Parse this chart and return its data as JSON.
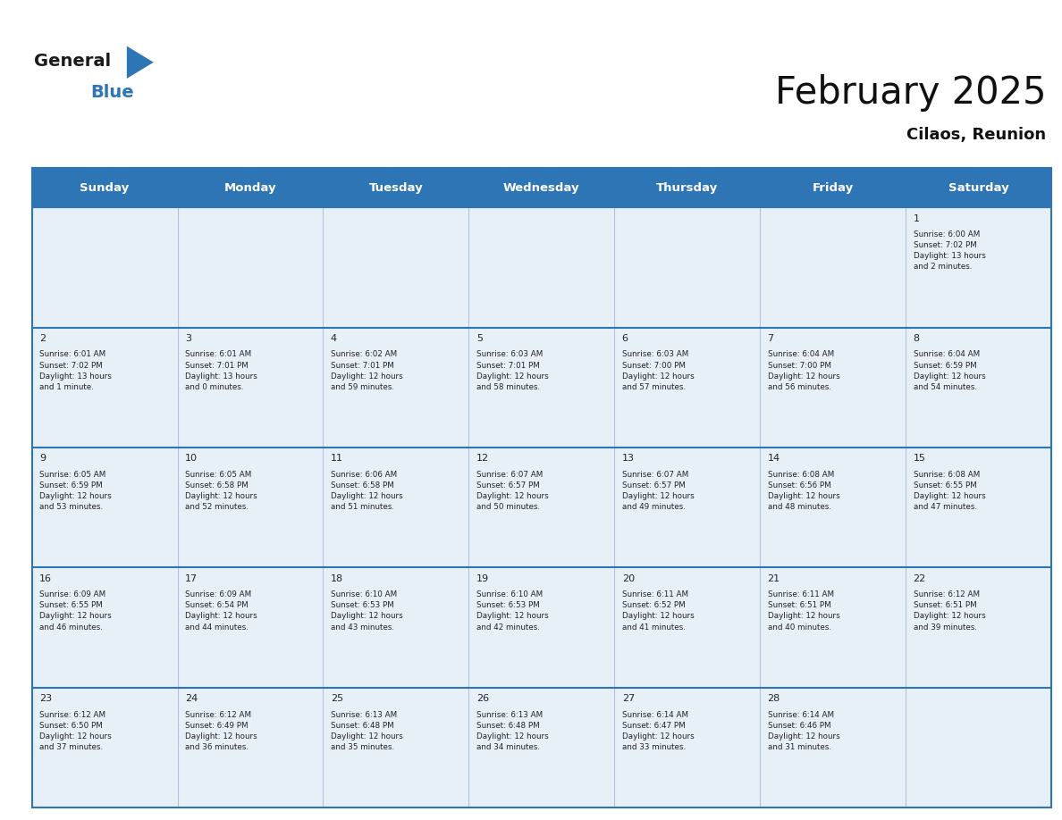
{
  "title": "February 2025",
  "subtitle": "Cilaos, Reunion",
  "header_bg": "#2e75b6",
  "header_text_color": "#ffffff",
  "cell_bg": "#e8f0f7",
  "cell_bg_empty": "#f5f8fc",
  "grid_line_color": "#2e75b6",
  "cell_line_color": "#b0c4de",
  "day_headers": [
    "Sunday",
    "Monday",
    "Tuesday",
    "Wednesday",
    "Thursday",
    "Friday",
    "Saturday"
  ],
  "weeks": [
    [
      {
        "day": null,
        "info": null
      },
      {
        "day": null,
        "info": null
      },
      {
        "day": null,
        "info": null
      },
      {
        "day": null,
        "info": null
      },
      {
        "day": null,
        "info": null
      },
      {
        "day": null,
        "info": null
      },
      {
        "day": 1,
        "info": "Sunrise: 6:00 AM\nSunset: 7:02 PM\nDaylight: 13 hours\nand 2 minutes."
      }
    ],
    [
      {
        "day": 2,
        "info": "Sunrise: 6:01 AM\nSunset: 7:02 PM\nDaylight: 13 hours\nand 1 minute."
      },
      {
        "day": 3,
        "info": "Sunrise: 6:01 AM\nSunset: 7:01 PM\nDaylight: 13 hours\nand 0 minutes."
      },
      {
        "day": 4,
        "info": "Sunrise: 6:02 AM\nSunset: 7:01 PM\nDaylight: 12 hours\nand 59 minutes."
      },
      {
        "day": 5,
        "info": "Sunrise: 6:03 AM\nSunset: 7:01 PM\nDaylight: 12 hours\nand 58 minutes."
      },
      {
        "day": 6,
        "info": "Sunrise: 6:03 AM\nSunset: 7:00 PM\nDaylight: 12 hours\nand 57 minutes."
      },
      {
        "day": 7,
        "info": "Sunrise: 6:04 AM\nSunset: 7:00 PM\nDaylight: 12 hours\nand 56 minutes."
      },
      {
        "day": 8,
        "info": "Sunrise: 6:04 AM\nSunset: 6:59 PM\nDaylight: 12 hours\nand 54 minutes."
      }
    ],
    [
      {
        "day": 9,
        "info": "Sunrise: 6:05 AM\nSunset: 6:59 PM\nDaylight: 12 hours\nand 53 minutes."
      },
      {
        "day": 10,
        "info": "Sunrise: 6:05 AM\nSunset: 6:58 PM\nDaylight: 12 hours\nand 52 minutes."
      },
      {
        "day": 11,
        "info": "Sunrise: 6:06 AM\nSunset: 6:58 PM\nDaylight: 12 hours\nand 51 minutes."
      },
      {
        "day": 12,
        "info": "Sunrise: 6:07 AM\nSunset: 6:57 PM\nDaylight: 12 hours\nand 50 minutes."
      },
      {
        "day": 13,
        "info": "Sunrise: 6:07 AM\nSunset: 6:57 PM\nDaylight: 12 hours\nand 49 minutes."
      },
      {
        "day": 14,
        "info": "Sunrise: 6:08 AM\nSunset: 6:56 PM\nDaylight: 12 hours\nand 48 minutes."
      },
      {
        "day": 15,
        "info": "Sunrise: 6:08 AM\nSunset: 6:55 PM\nDaylight: 12 hours\nand 47 minutes."
      }
    ],
    [
      {
        "day": 16,
        "info": "Sunrise: 6:09 AM\nSunset: 6:55 PM\nDaylight: 12 hours\nand 46 minutes."
      },
      {
        "day": 17,
        "info": "Sunrise: 6:09 AM\nSunset: 6:54 PM\nDaylight: 12 hours\nand 44 minutes."
      },
      {
        "day": 18,
        "info": "Sunrise: 6:10 AM\nSunset: 6:53 PM\nDaylight: 12 hours\nand 43 minutes."
      },
      {
        "day": 19,
        "info": "Sunrise: 6:10 AM\nSunset: 6:53 PM\nDaylight: 12 hours\nand 42 minutes."
      },
      {
        "day": 20,
        "info": "Sunrise: 6:11 AM\nSunset: 6:52 PM\nDaylight: 12 hours\nand 41 minutes."
      },
      {
        "day": 21,
        "info": "Sunrise: 6:11 AM\nSunset: 6:51 PM\nDaylight: 12 hours\nand 40 minutes."
      },
      {
        "day": 22,
        "info": "Sunrise: 6:12 AM\nSunset: 6:51 PM\nDaylight: 12 hours\nand 39 minutes."
      }
    ],
    [
      {
        "day": 23,
        "info": "Sunrise: 6:12 AM\nSunset: 6:50 PM\nDaylight: 12 hours\nand 37 minutes."
      },
      {
        "day": 24,
        "info": "Sunrise: 6:12 AM\nSunset: 6:49 PM\nDaylight: 12 hours\nand 36 minutes."
      },
      {
        "day": 25,
        "info": "Sunrise: 6:13 AM\nSunset: 6:48 PM\nDaylight: 12 hours\nand 35 minutes."
      },
      {
        "day": 26,
        "info": "Sunrise: 6:13 AM\nSunset: 6:48 PM\nDaylight: 12 hours\nand 34 minutes."
      },
      {
        "day": 27,
        "info": "Sunrise: 6:14 AM\nSunset: 6:47 PM\nDaylight: 12 hours\nand 33 minutes."
      },
      {
        "day": 28,
        "info": "Sunrise: 6:14 AM\nSunset: 6:46 PM\nDaylight: 12 hours\nand 31 minutes."
      },
      {
        "day": null,
        "info": null
      }
    ]
  ],
  "fig_width": 11.88,
  "fig_height": 9.18,
  "dpi": 100
}
